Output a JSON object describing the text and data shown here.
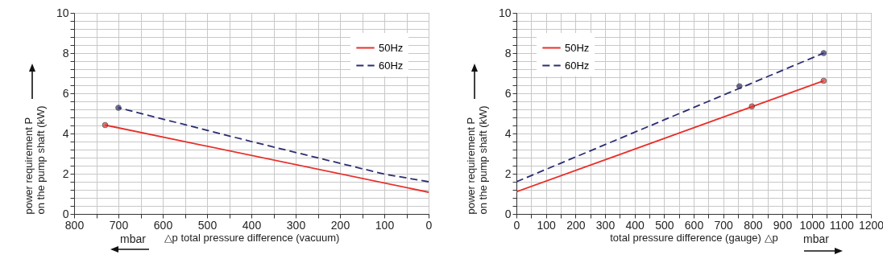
{
  "chart_data": [
    {
      "type": "line",
      "xlabel": "△p total pressure difference (vacuum)",
      "ylabel": "power requirement P\non the pump shaft (kW)",
      "annotations": [
        "mbar"
      ],
      "xlim": [
        800,
        0
      ],
      "xticks": [
        800,
        {
          "value": 750,
          "label": null
        },
        700,
        {
          "value": 650,
          "label": null
        },
        600,
        {
          "value": 550,
          "label": null
        },
        500,
        {
          "value": 450,
          "label": null
        },
        400,
        {
          "value": 350,
          "label": null
        },
        300,
        {
          "value": 250,
          "label": null
        },
        200,
        {
          "value": 150,
          "label": null
        },
        100,
        {
          "value": 50,
          "label": null
        },
        0
      ],
      "ylim": [
        0,
        10
      ],
      "yticks": [
        0,
        {
          "value": 0.4,
          "label": null
        },
        {
          "value": 0.8,
          "label": null
        },
        {
          "value": 1.2,
          "label": null
        },
        {
          "value": 1.6,
          "label": null
        },
        2,
        {
          "value": 2.4,
          "label": null
        },
        {
          "value": 2.8,
          "label": null
        },
        {
          "value": 3.2,
          "label": null
        },
        {
          "value": 3.6,
          "label": null
        },
        4,
        {
          "value": 4.4,
          "label": null
        },
        {
          "value": 4.8,
          "label": null
        },
        {
          "value": 5.2,
          "label": null
        },
        {
          "value": 5.6,
          "label": null
        },
        6,
        {
          "value": 6.4,
          "label": null
        },
        {
          "value": 6.8,
          "label": null
        },
        {
          "value": 7.2,
          "label": null
        },
        {
          "value": 7.6,
          "label": null
        },
        8,
        {
          "value": 8.4,
          "label": null
        },
        {
          "value": 8.8,
          "label": null
        },
        {
          "value": 9.2,
          "label": null
        },
        {
          "value": 9.6,
          "label": null
        },
        10
      ],
      "grid": true,
      "legend": "top right",
      "series": [
        {
          "name": "50Hz",
          "color": "#e8302a",
          "line_style": "solid",
          "x": [
            730,
            0
          ],
          "values": [
            4.42,
            1.08
          ]
        },
        {
          "name": "60Hz",
          "color": "#2b2d72",
          "line_style": "dashed",
          "x": [
            700,
            400,
            100,
            0
          ],
          "values": [
            5.28,
            3.6,
            1.98,
            1.6
          ]
        },
        {
          "type": "scatter",
          "color": "#e8302a",
          "marker": "circle",
          "x": [
            730
          ],
          "values": [
            4.42
          ]
        },
        {
          "type": "scatter",
          "color": "#2b2d72",
          "marker": "circle",
          "x": [
            700
          ],
          "values": [
            5.28
          ]
        }
      ]
    },
    {
      "type": "line",
      "xlabel": "total pressure difference (gauge) △p",
      "ylabel": "power requirement P\non the pump shaft (kW)",
      "annotations": [
        "mbar"
      ],
      "xlim": [
        0,
        1200
      ],
      "xticks": [
        0,
        {
          "value": 50,
          "label": null
        },
        100,
        {
          "value": 150,
          "label": null
        },
        200,
        {
          "value": 250,
          "label": null
        },
        300,
        {
          "value": 350,
          "label": null
        },
        400,
        {
          "value": 450,
          "label": null
        },
        500,
        {
          "value": 550,
          "label": null
        },
        600,
        {
          "value": 650,
          "label": null
        },
        700,
        {
          "value": 750,
          "label": null
        },
        800,
        {
          "value": 850,
          "label": null
        },
        900,
        {
          "value": 950,
          "label": null
        },
        1000,
        {
          "value": 1050,
          "label": null
        },
        1100,
        {
          "value": 1150,
          "label": null
        },
        1200
      ],
      "ylim": [
        0,
        10
      ],
      "yticks": [
        0,
        {
          "value": 0.4,
          "label": null
        },
        {
          "value": 0.8,
          "label": null
        },
        {
          "value": 1.2,
          "label": null
        },
        {
          "value": 1.6,
          "label": null
        },
        2,
        {
          "value": 2.4,
          "label": null
        },
        {
          "value": 2.8,
          "label": null
        },
        {
          "value": 3.2,
          "label": null
        },
        {
          "value": 3.6,
          "label": null
        },
        4,
        {
          "value": 4.4,
          "label": null
        },
        {
          "value": 4.8,
          "label": null
        },
        {
          "value": 5.2,
          "label": null
        },
        {
          "value": 5.6,
          "label": null
        },
        6,
        {
          "value": 6.4,
          "label": null
        },
        {
          "value": 6.8,
          "label": null
        },
        {
          "value": 7.2,
          "label": null
        },
        {
          "value": 7.6,
          "label": null
        },
        8,
        {
          "value": 8.4,
          "label": null
        },
        {
          "value": 8.8,
          "label": null
        },
        {
          "value": 9.2,
          "label": null
        },
        {
          "value": 9.6,
          "label": null
        },
        10
      ],
      "grid": true,
      "legend": "top left",
      "series": [
        {
          "name": "50Hz",
          "color": "#e8302a",
          "line_style": "solid",
          "x": [
            0,
            1040
          ],
          "values": [
            1.1,
            6.62
          ]
        },
        {
          "name": "60Hz",
          "color": "#2b2d72",
          "line_style": "dashed",
          "x": [
            0,
            1040
          ],
          "values": [
            1.6,
            8.0
          ]
        },
        {
          "type": "scatter",
          "color": "#e8302a",
          "marker": "circle",
          "x": [
            797,
            1040
          ],
          "values": [
            5.35,
            6.62
          ]
        },
        {
          "type": "scatter",
          "color": "#2b2d72",
          "marker": "circle",
          "x": [
            755,
            1040
          ],
          "values": [
            6.35,
            8.0
          ]
        }
      ]
    }
  ]
}
